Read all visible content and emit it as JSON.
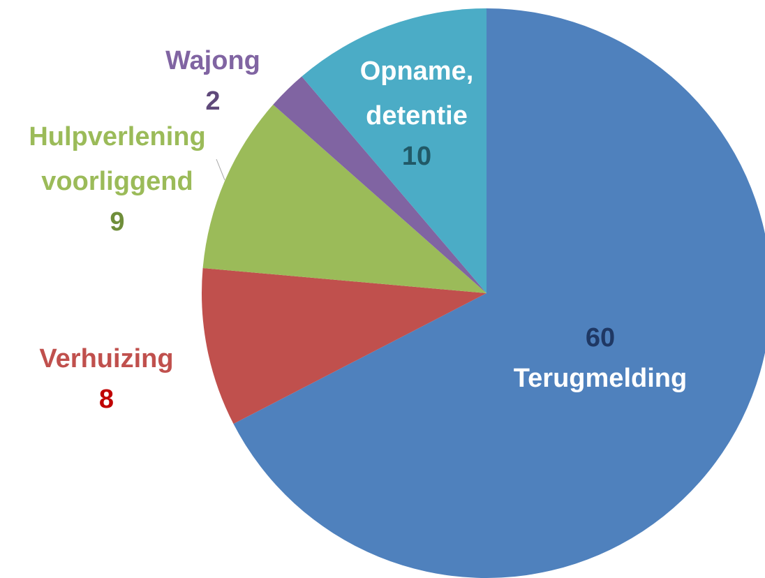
{
  "chart_data": {
    "type": "pie",
    "categories": [
      "Terugmelding",
      "Verhuizing",
      "Hulpverlening voorliggend",
      "Wajong",
      "Opname, detentie"
    ],
    "values": [
      60,
      8,
      9,
      2,
      10
    ],
    "colors": [
      "#4f81bd",
      "#c0504d",
      "#9bbb59",
      "#8064a2",
      "#4bacc6"
    ]
  }
}
